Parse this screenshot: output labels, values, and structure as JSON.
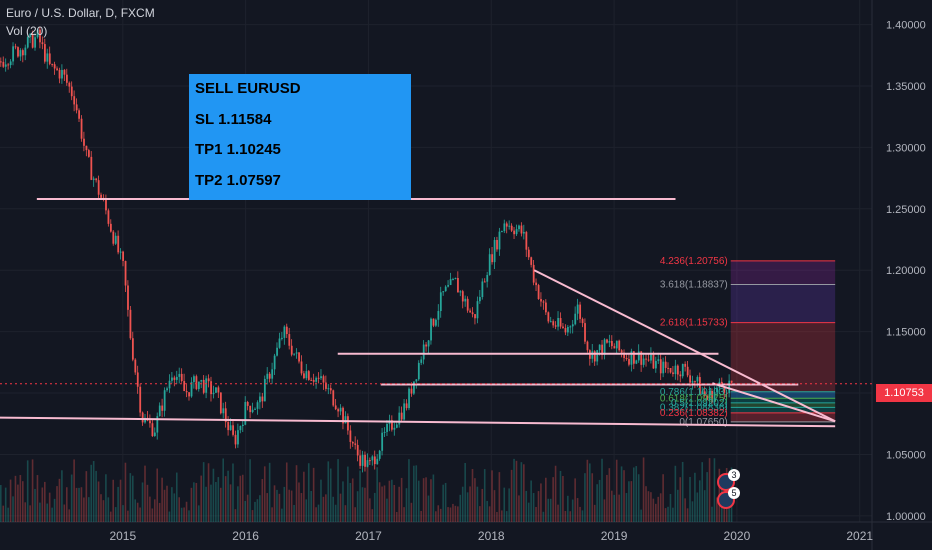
{
  "header": {
    "title": "Euro / U.S. Dollar, D, FXCM",
    "volume_label": "Vol (20)"
  },
  "trade_box": {
    "line1": "SELL EURUSD",
    "line2": "SL 1.11584",
    "line3": "TP1 1.10245",
    "line4": "TP2  1.07597"
  },
  "current_price": {
    "value": 1.10753,
    "label": "1.10753",
    "color": "#f23645"
  },
  "badges": [
    {
      "count": "3",
      "icon": "dividends-icon"
    },
    {
      "count": "5",
      "icon": "economic-event-flag-icon"
    }
  ],
  "chart_data": {
    "type": "candlestick",
    "symbol": "EURUSD",
    "timeframe": "D",
    "x_range": [
      2014.0,
      2021.1
    ],
    "ylim": [
      0.995,
      1.42
    ],
    "y_ticks": [
      1.0,
      1.05,
      1.1,
      1.15,
      1.2,
      1.25,
      1.3,
      1.35,
      1.4
    ],
    "y_tick_labels": [
      "1.00000",
      "1.05000",
      "1.10000",
      "1.15000",
      "1.20000",
      "1.25000",
      "1.30000",
      "1.35000",
      "1.40000"
    ],
    "x_ticks": [
      2015,
      2016,
      2017,
      2018,
      2019,
      2020,
      2021
    ],
    "x_tick_labels": [
      "2015",
      "2016",
      "2017",
      "2018",
      "2019",
      "2020",
      "2021"
    ],
    "price_path": [
      [
        2014.0,
        1.37
      ],
      [
        2014.15,
        1.38
      ],
      [
        2014.3,
        1.39
      ],
      [
        2014.4,
        1.365
      ],
      [
        2014.5,
        1.36
      ],
      [
        2014.6,
        1.34
      ],
      [
        2014.7,
        1.29
      ],
      [
        2014.85,
        1.25
      ],
      [
        2015.0,
        1.2
      ],
      [
        2015.05,
        1.15
      ],
      [
        2015.15,
        1.08
      ],
      [
        2015.25,
        1.07
      ],
      [
        2015.4,
        1.12
      ],
      [
        2015.5,
        1.1
      ],
      [
        2015.6,
        1.11
      ],
      [
        2015.75,
        1.1
      ],
      [
        2015.9,
        1.06
      ],
      [
        2016.0,
        1.09
      ],
      [
        2016.1,
        1.09
      ],
      [
        2016.3,
        1.15
      ],
      [
        2016.45,
        1.12
      ],
      [
        2016.6,
        1.11
      ],
      [
        2016.75,
        1.09
      ],
      [
        2016.9,
        1.05
      ],
      [
        2017.0,
        1.04
      ],
      [
        2017.15,
        1.07
      ],
      [
        2017.3,
        1.09
      ],
      [
        2017.45,
        1.14
      ],
      [
        2017.6,
        1.18
      ],
      [
        2017.7,
        1.19
      ],
      [
        2017.85,
        1.16
      ],
      [
        2017.95,
        1.2
      ],
      [
        2018.1,
        1.24
      ],
      [
        2018.25,
        1.23
      ],
      [
        2018.35,
        1.19
      ],
      [
        2018.45,
        1.16
      ],
      [
        2018.6,
        1.15
      ],
      [
        2018.7,
        1.17
      ],
      [
        2018.8,
        1.13
      ],
      [
        2018.95,
        1.14
      ],
      [
        2019.1,
        1.13
      ],
      [
        2019.2,
        1.13
      ],
      [
        2019.4,
        1.12
      ],
      [
        2019.55,
        1.12
      ],
      [
        2019.65,
        1.11
      ],
      [
        2019.75,
        1.095
      ],
      [
        2019.85,
        1.105
      ],
      [
        2019.95,
        1.1075
      ]
    ],
    "drawings": {
      "horizontal_lines": [
        {
          "x1": 2014.3,
          "x2": 2019.5,
          "y": 1.258
        },
        {
          "x1": 2016.75,
          "x2": 2019.85,
          "y": 1.132
        },
        {
          "x1": 2017.1,
          "x2": 2020.5,
          "y": 1.107
        }
      ],
      "trend_lines": [
        {
          "x1": 2014.0,
          "y1": 1.08,
          "x2": 2020.8,
          "y2": 1.073
        },
        {
          "x1": 2018.35,
          "y1": 1.2,
          "x2": 2020.8,
          "y2": 1.077
        },
        {
          "x1": 2019.8,
          "y1": 1.108,
          "x2": 2020.8,
          "y2": 1.077
        }
      ]
    },
    "fibonacci": {
      "x_start": 2019.95,
      "x_end": 2020.8,
      "levels": [
        {
          "label": "4.236(1.20756)",
          "value": 1.20756,
          "color": "#f23645"
        },
        {
          "label": "3.618(1.18837)",
          "value": 1.18837,
          "color": "#9598a1"
        },
        {
          "label": "2.618(1.15733)",
          "value": 1.15733,
          "color": "#f23645"
        },
        {
          "label": "0.786(1.10103)",
          "value": 1.10103,
          "color": "#26a69a"
        },
        {
          "label": "0.618(1.09575)",
          "value": 1.09575,
          "color": "#4caf50"
        },
        {
          "label": "0.5(1.09202)",
          "value": 1.09202,
          "color": "#26a69a"
        },
        {
          "label": "0.382(1.08836)",
          "value": 1.08836,
          "color": "#26a69a"
        },
        {
          "label": "0.236(1.08382)",
          "value": 1.08382,
          "color": "#f23645"
        },
        {
          "label": "0(1.07650)",
          "value": 1.0765,
          "color": "#9598a1"
        }
      ]
    },
    "colors": {
      "up": "#26a69a",
      "down": "#ef5350",
      "grid": "#1e222d",
      "background": "#131722",
      "lines": "#f8bbd0"
    },
    "grid": true
  }
}
